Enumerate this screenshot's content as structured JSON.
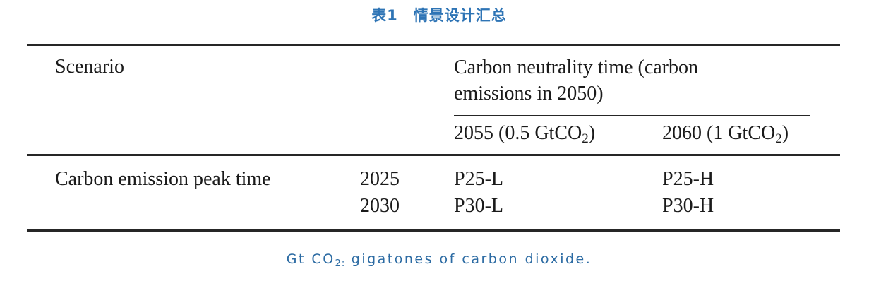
{
  "title": "表1　情景设计汇总",
  "colors": {
    "title_blue": "#2e74b5",
    "footnote_blue": "#2c6ba3",
    "rule_dark": "#262626",
    "body_text": "#1a1a1a"
  },
  "table": {
    "scenario_header": "Scenario",
    "group_header_line1": "Carbon neutrality time (carbon",
    "group_header_line2": "emissions in 2050)",
    "subcolumns": [
      {
        "pre": "2055 (0.5 GtCO",
        "sub": "2",
        "post": ")"
      },
      {
        "pre": "2060 (1 GtCO",
        "sub": "2",
        "post": ")"
      }
    ],
    "row_label": "Carbon emission peak time",
    "rows": [
      {
        "year": "2025",
        "low": "P25-L",
        "high": "P25-H"
      },
      {
        "year": "2030",
        "low": "P30-L",
        "high": "P30-H"
      }
    ]
  },
  "footnote": {
    "pre": "Gt CO",
    "sub": "2:",
    "post": " gigatones of carbon dioxide."
  }
}
